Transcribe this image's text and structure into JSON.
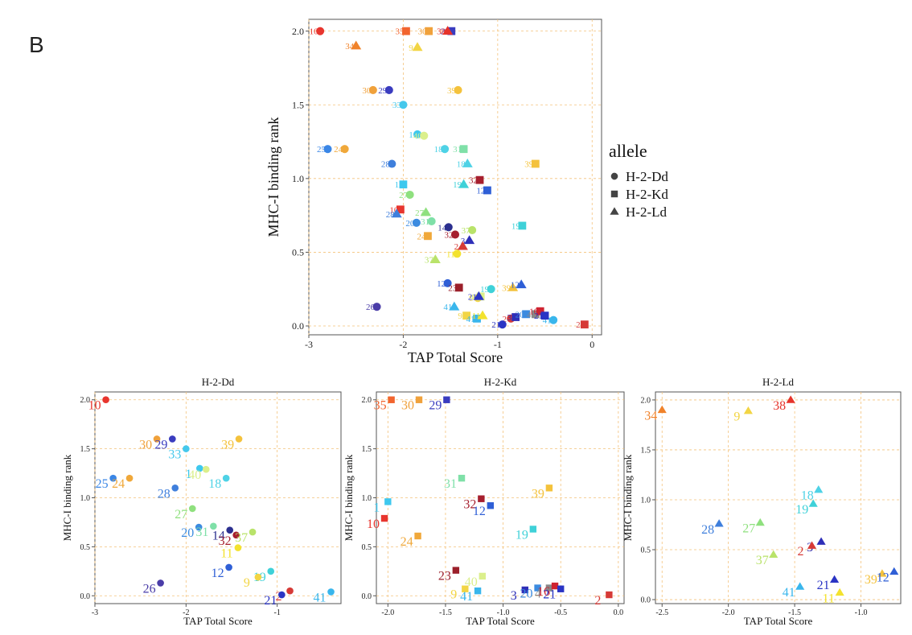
{
  "figure": {
    "panel_letter": "B"
  },
  "colors": {
    "1": "#3ec8ee",
    "2": "#d63a36",
    "3": "#2e2fb8",
    "9": "#f2d544",
    "10": "#e8352e",
    "11": "#f3e22e",
    "12": "#2f5fd6",
    "14": "#2b2f8f",
    "16": "#cf2331",
    "18": "#4ed2e6",
    "19": "#3fd1d8",
    "20": "#3b8be0",
    "21": "#2a34c4",
    "23": "#9b1f2a",
    "24": "#f0a83a",
    "25": "#3a86e6",
    "26": "#4a3ca8",
    "27": "#8fe07e",
    "28": "#3f7fdc",
    "29": "#3a3cbf",
    "30": "#f0a13b",
    "31": "#7fe0a8",
    "32": "#a61f2e",
    "33": "#45c8ec",
    "34": "#f0822a",
    "35": "#f2642e",
    "37": "#b9e36a",
    "38": "#e6332a",
    "39": "#f4c23c",
    "40": "#dbef8c",
    "41": "#39b6ec",
    "grid": "#f4c27a"
  },
  "legend": {
    "title": "allele",
    "items": [
      {
        "label": "H-2-Dd",
        "shape": "circle"
      },
      {
        "label": "H-2-Kd",
        "shape": "square"
      },
      {
        "label": "H-2-Ld",
        "shape": "triangle"
      }
    ]
  },
  "chart_data": [
    {
      "type": "scatter",
      "title": "",
      "xlabel": "TAP Total Score",
      "ylabel": "MHC-I binding rank",
      "xlim": [
        -3,
        0.1
      ],
      "ylim": [
        -0.06,
        2.08
      ],
      "xticks": [
        -3,
        -2,
        -1,
        0
      ],
      "yticks": [
        0.0,
        0.5,
        1.0,
        1.5,
        2.0
      ],
      "grid": true,
      "legend_position": "right",
      "points": [
        {
          "id": "10",
          "allele": "H-2-Dd",
          "x": -2.88,
          "y": 2.0
        },
        {
          "id": "30",
          "allele": "H-2-Dd",
          "x": -2.32,
          "y": 1.6
        },
        {
          "id": "29",
          "allele": "H-2-Dd",
          "x": -2.15,
          "y": 1.6
        },
        {
          "id": "39",
          "allele": "H-2-Dd",
          "x": -1.42,
          "y": 1.6
        },
        {
          "id": "33",
          "allele": "H-2-Dd",
          "x": -2.0,
          "y": 1.5
        },
        {
          "id": "1",
          "allele": "H-2-Dd",
          "x": -1.85,
          "y": 1.3
        },
        {
          "id": "40",
          "allele": "H-2-Dd",
          "x": -1.78,
          "y": 1.29
        },
        {
          "id": "25",
          "allele": "H-2-Dd",
          "x": -2.8,
          "y": 1.2
        },
        {
          "id": "24",
          "allele": "H-2-Dd",
          "x": -2.62,
          "y": 1.2
        },
        {
          "id": "18",
          "allele": "H-2-Dd",
          "x": -1.56,
          "y": 1.2
        },
        {
          "id": "28",
          "allele": "H-2-Dd",
          "x": -2.12,
          "y": 1.1
        },
        {
          "id": "27",
          "allele": "H-2-Dd",
          "x": -1.93,
          "y": 0.89
        },
        {
          "id": "20",
          "allele": "H-2-Dd",
          "x": -1.86,
          "y": 0.7
        },
        {
          "id": "31",
          "allele": "H-2-Dd",
          "x": -1.7,
          "y": 0.71
        },
        {
          "id": "14",
          "allele": "H-2-Dd",
          "x": -1.52,
          "y": 0.67
        },
        {
          "id": "32",
          "allele": "H-2-Dd",
          "x": -1.45,
          "y": 0.62
        },
        {
          "id": "37",
          "allele": "H-2-Dd",
          "x": -1.27,
          "y": 0.65
        },
        {
          "id": "11",
          "allele": "H-2-Dd",
          "x": -1.43,
          "y": 0.49
        },
        {
          "id": "12",
          "allele": "H-2-Dd",
          "x": -1.53,
          "y": 0.29
        },
        {
          "id": "19",
          "allele": "H-2-Dd",
          "x": -1.07,
          "y": 0.25
        },
        {
          "id": "26",
          "allele": "H-2-Dd",
          "x": -2.28,
          "y": 0.13
        },
        {
          "id": "9",
          "allele": "H-2-Dd",
          "x": -1.21,
          "y": 0.19
        },
        {
          "id": "2",
          "allele": "H-2-Dd",
          "x": -0.86,
          "y": 0.05
        },
        {
          "id": "21",
          "allele": "H-2-Dd",
          "x": -0.95,
          "y": 0.01
        },
        {
          "id": "41",
          "allele": "H-2-Dd",
          "x": -0.41,
          "y": 0.04
        },
        {
          "id": "35",
          "allele": "H-2-Kd",
          "x": -1.97,
          "y": 2.0
        },
        {
          "id": "30",
          "allele": "H-2-Kd",
          "x": -1.73,
          "y": 2.0
        },
        {
          "id": "29",
          "allele": "H-2-Kd",
          "x": -1.49,
          "y": 2.0
        },
        {
          "id": "1",
          "allele": "H-2-Kd",
          "x": -2.0,
          "y": 0.96
        },
        {
          "id": "10",
          "allele": "H-2-Kd",
          "x": -2.03,
          "y": 0.79
        },
        {
          "id": "31",
          "allele": "H-2-Kd",
          "x": -1.36,
          "y": 1.2
        },
        {
          "id": "32",
          "allele": "H-2-Kd",
          "x": -1.19,
          "y": 0.99
        },
        {
          "id": "12",
          "allele": "H-2-Kd",
          "x": -1.11,
          "y": 0.92
        },
        {
          "id": "39",
          "allele": "H-2-Kd",
          "x": -0.6,
          "y": 1.1
        },
        {
          "id": "19",
          "allele": "H-2-Kd",
          "x": -0.74,
          "y": 0.68
        },
        {
          "id": "24",
          "allele": "H-2-Kd",
          "x": -1.74,
          "y": 0.61
        },
        {
          "id": "23",
          "allele": "H-2-Kd",
          "x": -1.41,
          "y": 0.26
        },
        {
          "id": "40",
          "allele": "H-2-Kd",
          "x": -1.18,
          "y": 0.2
        },
        {
          "id": "9",
          "allele": "H-2-Kd",
          "x": -1.33,
          "y": 0.07
        },
        {
          "id": "41",
          "allele": "H-2-Kd",
          "x": -1.22,
          "y": 0.05
        },
        {
          "id": "3",
          "allele": "H-2-Kd",
          "x": -0.81,
          "y": 0.06
        },
        {
          "id": "20",
          "allele": "H-2-Kd",
          "x": -0.7,
          "y": 0.08
        },
        {
          "id": "4",
          "allele": "H-2-Kd",
          "x": -0.6,
          "y": 0.08
        },
        {
          "id": "16",
          "allele": "H-2-Kd",
          "x": -0.55,
          "y": 0.1
        },
        {
          "id": "21",
          "allele": "H-2-Kd",
          "x": -0.5,
          "y": 0.07
        },
        {
          "id": "2",
          "allele": "H-2-Kd",
          "x": -0.08,
          "y": 0.01
        },
        {
          "id": "34",
          "allele": "H-2-Ld",
          "x": -2.5,
          "y": 1.9
        },
        {
          "id": "9",
          "allele": "H-2-Ld",
          "x": -1.85,
          "y": 1.89
        },
        {
          "id": "38",
          "allele": "H-2-Ld",
          "x": -1.53,
          "y": 2.0
        },
        {
          "id": "18",
          "allele": "H-2-Ld",
          "x": -1.32,
          "y": 1.1
        },
        {
          "id": "19",
          "allele": "H-2-Ld",
          "x": -1.36,
          "y": 0.96
        },
        {
          "id": "27",
          "allele": "H-2-Ld",
          "x": -1.76,
          "y": 0.77
        },
        {
          "id": "28",
          "allele": "H-2-Ld",
          "x": -2.07,
          "y": 0.76
        },
        {
          "id": "37",
          "allele": "H-2-Ld",
          "x": -1.66,
          "y": 0.45
        },
        {
          "id": "3",
          "allele": "H-2-Ld",
          "x": -1.3,
          "y": 0.58
        },
        {
          "id": "2",
          "allele": "H-2-Ld",
          "x": -1.37,
          "y": 0.54
        },
        {
          "id": "41",
          "allele": "H-2-Ld",
          "x": -1.46,
          "y": 0.13
        },
        {
          "id": "21",
          "allele": "H-2-Ld",
          "x": -1.2,
          "y": 0.2
        },
        {
          "id": "11",
          "allele": "H-2-Ld",
          "x": -1.16,
          "y": 0.07
        },
        {
          "id": "39",
          "allele": "H-2-Ld",
          "x": -0.84,
          "y": 0.26
        },
        {
          "id": "12",
          "allele": "H-2-Ld",
          "x": -0.75,
          "y": 0.28
        }
      ]
    },
    {
      "type": "scatter",
      "title": "H-2-Dd",
      "xlabel": "TAP Total Score",
      "ylabel": "MHC-I binding rank",
      "xlim": [
        -3,
        -0.3
      ],
      "ylim": [
        -0.08,
        2.08
      ],
      "xticks": [
        -3,
        -2,
        -1
      ],
      "yticks": [
        0.0,
        0.5,
        1.0,
        1.5,
        2.0
      ],
      "grid": true,
      "allele": "H-2-Dd"
    },
    {
      "type": "scatter",
      "title": "H-2-Kd",
      "xlabel": "TAP Total Score",
      "ylabel": "MHC-I binding rank",
      "xlim": [
        -2.1,
        0.05
      ],
      "ylim": [
        -0.08,
        2.08
      ],
      "xticks": [
        -2.0,
        -1.5,
        -1.0,
        -0.5,
        0.0
      ],
      "yticks": [
        0.0,
        0.5,
        1.0,
        1.5,
        2.0
      ],
      "grid": true,
      "allele": "H-2-Kd"
    },
    {
      "type": "scatter",
      "title": "H-2-Ld",
      "xlabel": "TAP Total Score",
      "ylabel": "MHC-I binding rank",
      "xlim": [
        -2.55,
        -0.7
      ],
      "ylim": [
        -0.04,
        2.08
      ],
      "xticks": [
        -2.5,
        -2.0,
        -1.5,
        -1.0
      ],
      "yticks": [
        0.0,
        0.5,
        1.0,
        1.5,
        2.0
      ],
      "grid": true,
      "allele": "H-2-Ld"
    }
  ]
}
